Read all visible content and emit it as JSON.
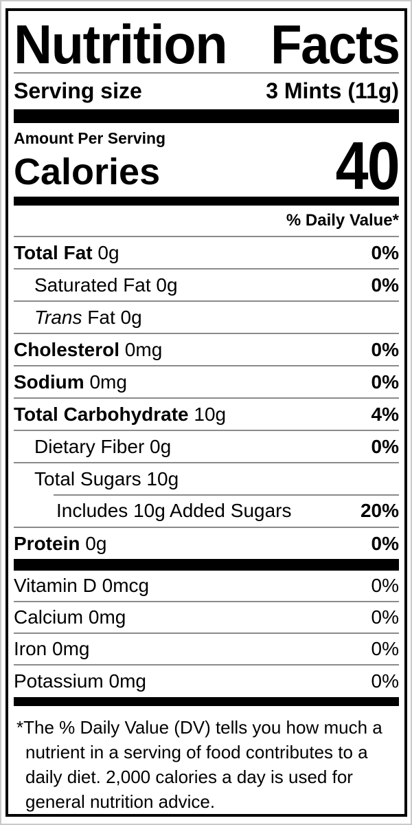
{
  "colors": {
    "border": "#000000",
    "section_bar": "#000000",
    "hairline": "#8a8a8a",
    "background": "#ffffff",
    "text": "#000000"
  },
  "label": {
    "title_parts": [
      "Nutrition",
      "Facts"
    ],
    "serving_size": {
      "label": "Serving size",
      "value": "3 Mints (11g)"
    },
    "amount_per_serving": "Amount Per Serving",
    "calories": {
      "label": "Calories",
      "value": "40"
    },
    "daily_value_header": "% Daily Value*",
    "nutrients": [
      {
        "bold": "Total Fat",
        "italic": "",
        "regular": " 0g",
        "dv": "0%",
        "indent": 0
      },
      {
        "bold": "",
        "italic": "",
        "regular": "Saturated Fat 0g",
        "dv": "0%",
        "indent": 1
      },
      {
        "bold": "",
        "italic": "Trans",
        "regular": " Fat 0g",
        "dv": "",
        "indent": 1
      },
      {
        "bold": "Cholesterol",
        "italic": "",
        "regular": " 0mg",
        "dv": "0%",
        "indent": 0
      },
      {
        "bold": "Sodium",
        "italic": "",
        "regular": " 0mg",
        "dv": "0%",
        "indent": 0
      },
      {
        "bold": "Total Carbohydrate",
        "italic": "",
        "regular": " 10g",
        "dv": "4%",
        "indent": 0
      },
      {
        "bold": "",
        "italic": "",
        "regular": "Dietary Fiber 0g",
        "dv": "0%",
        "indent": 1
      },
      {
        "bold": "",
        "italic": "",
        "regular": "Total Sugars 10g",
        "dv": "",
        "indent": 1
      },
      {
        "bold": "",
        "italic": "",
        "regular": "Includes 10g Added Sugars",
        "dv": "20%",
        "indent": 2
      },
      {
        "bold": "Protein",
        "italic": "",
        "regular": " 0g",
        "dv": "0%",
        "indent": 0
      }
    ],
    "vitamins": [
      {
        "name": "Vitamin D 0mcg",
        "dv": "0%"
      },
      {
        "name": "Calcium 0mg",
        "dv": "0%"
      },
      {
        "name": "Iron 0mg",
        "dv": "0%"
      },
      {
        "name": "Potassium 0mg",
        "dv": "0%"
      }
    ],
    "footnote": {
      "marker": "*",
      "text": "The % Daily Value (DV) tells you how much a nutrient in a serving of food contributes to a daily diet. 2,000 calories a day is used for general nutrition advice."
    }
  }
}
